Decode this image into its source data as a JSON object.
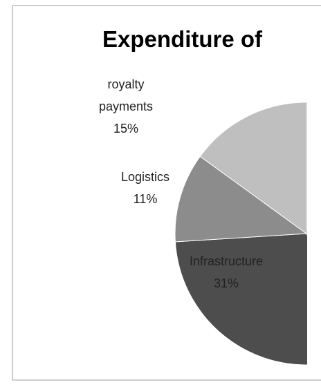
{
  "chart_data": {
    "type": "pie",
    "title": "Expenditure of",
    "categories": [
      "Infrastructure",
      "Logistics",
      "royalty payments"
    ],
    "values": [
      31,
      11,
      15
    ],
    "value_labels": [
      "31%",
      "11%",
      "15%"
    ],
    "colors": [
      "#4d4d4d",
      "#8c8c8c",
      "#bfbfbf"
    ]
  }
}
